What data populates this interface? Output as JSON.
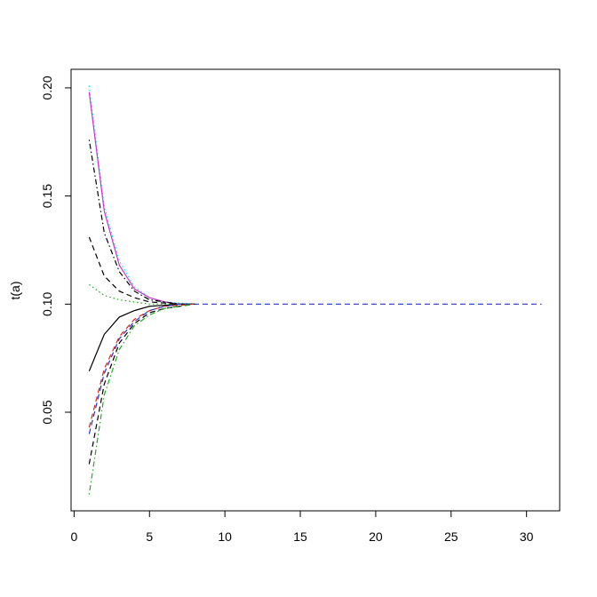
{
  "chart_data": {
    "type": "line",
    "y_label": "t(a)",
    "x": [
      1,
      2,
      3,
      4,
      5,
      6,
      7,
      8,
      9,
      10,
      11,
      12,
      13,
      14,
      15,
      16,
      17,
      18,
      19,
      20,
      21,
      22,
      23,
      24,
      25,
      26,
      27,
      28,
      29,
      30,
      31
    ],
    "xlim": [
      -0.2,
      32.2
    ],
    "xticks": [
      0,
      5,
      10,
      15,
      20,
      25,
      30
    ],
    "ylim": [
      0.0044,
      0.2086
    ],
    "yticks": [
      0.05,
      {
        "value": 0.1,
        "label": "0.10"
      },
      0.15,
      {
        "value": 0.2,
        "label": "0.20"
      }
    ],
    "series": [
      {
        "color": "#00e5ee",
        "dash": "dotted",
        "values": [
          0.201,
          0.145,
          0.12,
          0.108,
          0.103,
          0.101,
          0.1005,
          0.1,
          null,
          null,
          null,
          null,
          null,
          null,
          null,
          null,
          null,
          null,
          null,
          null,
          null,
          null,
          null,
          null,
          null,
          null,
          null,
          null,
          null,
          null,
          null
        ]
      },
      {
        "color": "#cc33cc",
        "dash": "solid",
        "values": [
          0.198,
          0.143,
          0.118,
          0.107,
          0.103,
          0.101,
          0.1,
          0.1,
          null,
          null,
          null,
          null,
          null,
          null,
          null,
          null,
          null,
          null,
          null,
          null,
          null,
          null,
          null,
          null,
          null,
          null,
          null,
          null,
          null,
          null,
          null
        ]
      },
      {
        "color": "#000000",
        "dash": "dotdash",
        "values": [
          0.176,
          0.133,
          0.115,
          0.106,
          0.102,
          0.101,
          0.1,
          0.1,
          null,
          null,
          null,
          null,
          null,
          null,
          null,
          null,
          null,
          null,
          null,
          null,
          null,
          null,
          null,
          null,
          null,
          null,
          null,
          null,
          null,
          null,
          null
        ]
      },
      {
        "color": "#000000",
        "dash": "dashed",
        "values": [
          0.131,
          0.113,
          0.106,
          0.103,
          0.101,
          0.1005,
          0.1,
          0.1,
          null,
          null,
          null,
          null,
          null,
          null,
          null,
          null,
          null,
          null,
          null,
          null,
          null,
          null,
          null,
          null,
          null,
          null,
          null,
          null,
          null,
          null,
          null
        ]
      },
      {
        "color": "#22aa22",
        "dash": "dotted",
        "values": [
          0.109,
          0.104,
          0.102,
          0.101,
          0.1,
          0.1,
          0.1,
          0.1,
          null,
          null,
          null,
          null,
          null,
          null,
          null,
          null,
          null,
          null,
          null,
          null,
          null,
          null,
          null,
          null,
          null,
          null,
          null,
          null,
          null,
          null,
          null
        ]
      },
      {
        "color": "#000000",
        "dash": "solid",
        "values": [
          0.069,
          0.086,
          0.094,
          0.097,
          0.099,
          0.0995,
          0.1,
          0.1,
          null,
          null,
          null,
          null,
          null,
          null,
          null,
          null,
          null,
          null,
          null,
          null,
          null,
          null,
          null,
          null,
          null,
          null,
          null,
          null,
          null,
          null,
          null
        ]
      },
      {
        "color": "#dd2222",
        "dash": "dashed",
        "values": [
          0.043,
          0.07,
          0.085,
          0.093,
          0.097,
          0.099,
          0.0995,
          0.1,
          null,
          null,
          null,
          null,
          null,
          null,
          null,
          null,
          null,
          null,
          null,
          null,
          null,
          null,
          null,
          null,
          null,
          null,
          null,
          null,
          null,
          null,
          null
        ]
      },
      {
        "color": "#2233cc",
        "dash": "dashed",
        "values": [
          0.04,
          0.068,
          0.084,
          0.092,
          0.097,
          0.099,
          0.1,
          0.1,
          0.1,
          0.1,
          0.1,
          0.1,
          0.1,
          0.1,
          0.1,
          0.1,
          0.1,
          0.1,
          0.1,
          0.1,
          0.1,
          0.1,
          0.1,
          0.1,
          0.1,
          0.1,
          0.1,
          0.1,
          0.1,
          0.1,
          0.1
        ]
      },
      {
        "color": "#000000",
        "dash": "dashed",
        "values": [
          0.026,
          0.063,
          0.082,
          0.091,
          0.096,
          0.098,
          0.099,
          0.1,
          null,
          null,
          null,
          null,
          null,
          null,
          null,
          null,
          null,
          null,
          null,
          null,
          null,
          null,
          null,
          null,
          null,
          null,
          null,
          null,
          null,
          null,
          null
        ]
      },
      {
        "color": "#22aa22",
        "dash": "dotdash",
        "values": [
          0.012,
          0.058,
          0.079,
          0.09,
          0.095,
          0.098,
          0.099,
          0.1,
          null,
          null,
          null,
          null,
          null,
          null,
          null,
          null,
          null,
          null,
          null,
          null,
          null,
          null,
          null,
          null,
          null,
          null,
          null,
          null,
          null,
          null,
          null
        ]
      }
    ]
  }
}
